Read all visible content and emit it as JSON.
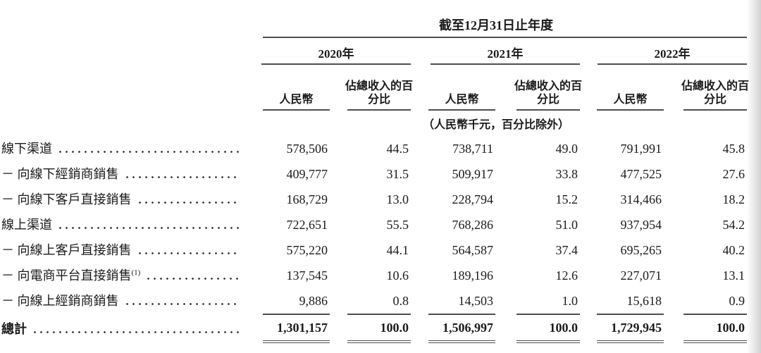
{
  "document": {
    "title": "截至12月31日止年度",
    "unit_note": "（人民幣千元，百分比除外）",
    "years": [
      "2020年",
      "2021年",
      "2022年"
    ],
    "columns": {
      "rmb": "人民幣",
      "pct_line1": "佔總收入的百",
      "pct_line2": "分比"
    },
    "rows": [
      {
        "label": "線下渠道",
        "sup": "",
        "total": false,
        "values": [
          "578,506",
          "44.5",
          "738,711",
          "49.0",
          "791,991",
          "45.8"
        ]
      },
      {
        "label": "－ 向線下經銷商銷售",
        "sup": "",
        "total": false,
        "values": [
          "409,777",
          "31.5",
          "509,917",
          "33.8",
          "477,525",
          "27.6"
        ]
      },
      {
        "label": "－ 向線下客戶直接銷售",
        "sup": "",
        "total": false,
        "values": [
          "168,729",
          "13.0",
          "228,794",
          "15.2",
          "314,466",
          "18.2"
        ]
      },
      {
        "label": "線上渠道",
        "sup": "",
        "total": false,
        "values": [
          "722,651",
          "55.5",
          "768,286",
          "51.0",
          "937,954",
          "54.2"
        ]
      },
      {
        "label": "－ 向線上客戶直接銷售",
        "sup": "",
        "total": false,
        "values": [
          "575,220",
          "44.1",
          "564,587",
          "37.4",
          "695,265",
          "40.2"
        ]
      },
      {
        "label": "－ 向電商平台直接銷售",
        "sup": "(1)",
        "total": false,
        "values": [
          "137,545",
          "10.6",
          "189,196",
          "12.6",
          "227,071",
          "13.1"
        ]
      },
      {
        "label": "－ 向線上經銷商銷售",
        "sup": "",
        "total": false,
        "values": [
          "9,886",
          "0.8",
          "14,503",
          "1.0",
          "15,618",
          "0.9"
        ]
      },
      {
        "label": "總計",
        "sup": "",
        "total": true,
        "values": [
          "1,301,157",
          "100.0",
          "1,506,997",
          "100.0",
          "1,729,945",
          "100.0"
        ]
      }
    ],
    "rule_color": "#4f4f4f",
    "text_color": "#1b1b1b"
  }
}
